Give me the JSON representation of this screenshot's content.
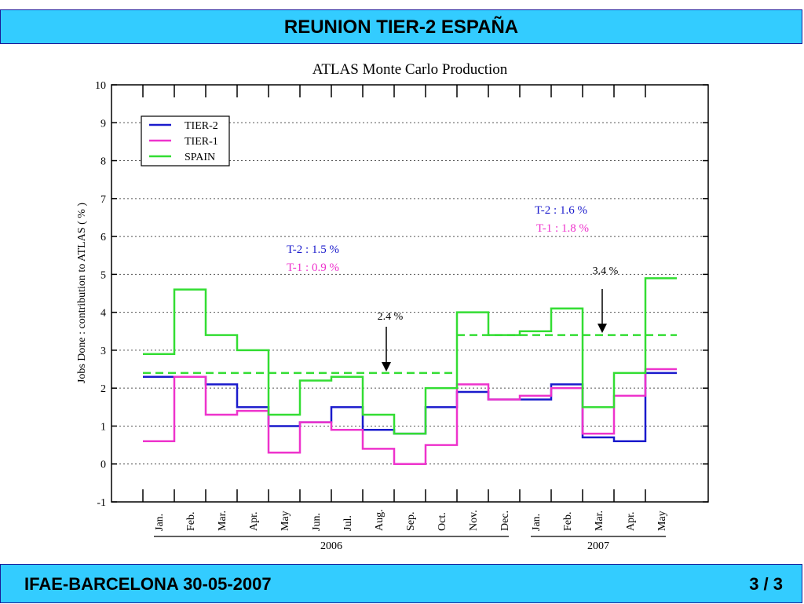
{
  "slide": {
    "title": "REUNION  TIER-2  ESPAÑA",
    "footer_left": "IFAE-BARCELONA  30-05-2007",
    "footer_right": "3 / 3"
  },
  "chart_data": {
    "type": "line",
    "step": true,
    "title": "ATLAS  Monte  Carlo  Production",
    "ylabel": "Jobs  Done :  contribution  to  ATLAS  ( % )",
    "ylim": [
      -1,
      10
    ],
    "yticks": [
      -1,
      0,
      1,
      2,
      3,
      4,
      5,
      6,
      7,
      8,
      9,
      10
    ],
    "grid": true,
    "legend_position": "top-left",
    "categories": [
      "Jan.",
      "Feb.",
      "Mar.",
      "Apr.",
      "May",
      "Jun.",
      "Jul.",
      "Aug.",
      "Sep.",
      "Oct.",
      "Nov.",
      "Dec.",
      "Jan.",
      "Feb.",
      "Mar.",
      "Apr.",
      "May"
    ],
    "year_groups": [
      {
        "label": "2006",
        "from": 0,
        "to": 11
      },
      {
        "label": "2007",
        "from": 12,
        "to": 16
      }
    ],
    "series": [
      {
        "name": "TIER-2",
        "color": "#1a1acc",
        "values": [
          2.3,
          2.3,
          2.1,
          1.5,
          1.0,
          1.1,
          1.5,
          0.9,
          0.8,
          1.5,
          1.9,
          1.7,
          1.7,
          2.1,
          0.7,
          0.6,
          2.4
        ]
      },
      {
        "name": "TIER-1",
        "color": "#ee33cc",
        "values": [
          0.6,
          2.3,
          1.3,
          1.4,
          0.3,
          1.1,
          0.9,
          0.4,
          0.0,
          0.5,
          2.1,
          1.7,
          1.8,
          2.0,
          0.8,
          1.8,
          2.5
        ]
      },
      {
        "name": "SPAIN",
        "color": "#33dd33",
        "values": [
          2.9,
          4.6,
          3.4,
          3.0,
          1.3,
          2.2,
          2.3,
          1.3,
          0.8,
          2.0,
          4.0,
          3.4,
          3.5,
          4.1,
          1.5,
          2.4,
          4.9
        ]
      }
    ],
    "averages": [
      {
        "value": 2.4,
        "from": 0,
        "to": 9,
        "color": "#33dd33",
        "label": "2.4 %"
      },
      {
        "value": 3.4,
        "from": 10,
        "to": 16,
        "color": "#33dd33",
        "label": "3.4 %"
      }
    ],
    "annotations": [
      {
        "text": "T-2 :  1.5 %",
        "color": "#1a1acc"
      },
      {
        "text": "T-1 :  0.9 %",
        "color": "#ee33cc"
      },
      {
        "text": "T-2 :  1.6 %",
        "color": "#1a1acc"
      },
      {
        "text": "T-1 :  1.8 %",
        "color": "#ee33cc"
      }
    ]
  }
}
